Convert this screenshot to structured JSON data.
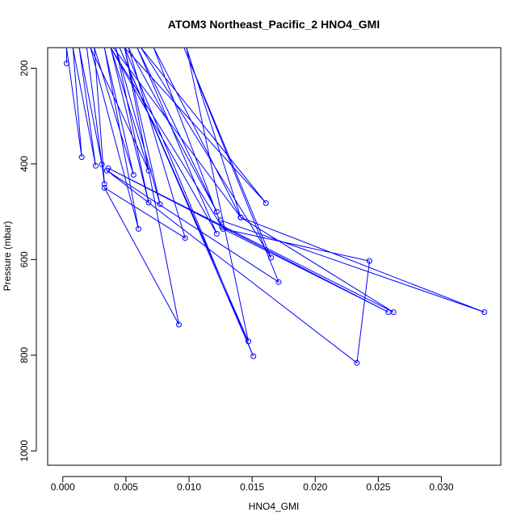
{
  "chart_data": {
    "type": "line",
    "title": "ATOM3 Northeast_Pacific_2 HNO4_GMI",
    "xlabel": "HNO4_GMI",
    "ylabel": "Pressure (mbar)",
    "xlim": [
      -0.0012,
      0.0347
    ],
    "ylim": [
      1030,
      157
    ],
    "y_reversed": true,
    "grid": false,
    "legend": "none",
    "series_color": "#0000ff",
    "x_ticks": [
      0.0,
      0.005,
      0.01,
      0.015,
      0.02,
      0.025,
      0.03
    ],
    "x_tick_labels": [
      "0.000",
      "0.005",
      "0.010",
      "0.015",
      "0.020",
      "0.025",
      "0.030"
    ],
    "y_ticks": [
      200,
      400,
      600,
      800,
      1000
    ],
    "y_tick_labels": [
      "200",
      "400",
      "600",
      "800",
      "1000"
    ],
    "series": [
      {
        "x": [
          0.0003,
          0.0003,
          0.0015,
          0.0008,
          0.0026,
          0.0013,
          0.0031,
          0.0019,
          0.0033,
          0.0025,
          0.0056,
          0.0033,
          0.006,
          0.0022,
          0.0068,
          0.0038,
          0.0068,
          0.0042,
          0.0077,
          0.0049,
          0.0092,
          0.0033,
          0.0097,
          0.0052,
          0.0122,
          0.0059,
          0.0122,
          0.0038,
          0.0126,
          0.0072,
          0.0141,
          0.004,
          0.0141,
          0.0098,
          0.0147,
          0.0045,
          0.0151,
          0.0049,
          0.0161,
          0.0062,
          0.0165,
          0.0096,
          0.0171,
          0.0035,
          0.0233,
          0.0243,
          0.0127,
          0.0258,
          0.0036,
          0.0262,
          0.0141,
          0.0334,
          0.0125
        ],
        "y": [
          190,
          157,
          386,
          157,
          404,
          157,
          401,
          157,
          442,
          157,
          423,
          157,
          536,
          157,
          414,
          157,
          481,
          157,
          484,
          157,
          736,
          450,
          555,
          157,
          500,
          157,
          546,
          157,
          531,
          157,
          512,
          157,
          512,
          157,
          771,
          157,
          802,
          157,
          482,
          157,
          596,
          157,
          647,
          414,
          816,
          603,
          536,
          710,
          409,
          710,
          512,
          710,
          518
        ]
      }
    ]
  }
}
